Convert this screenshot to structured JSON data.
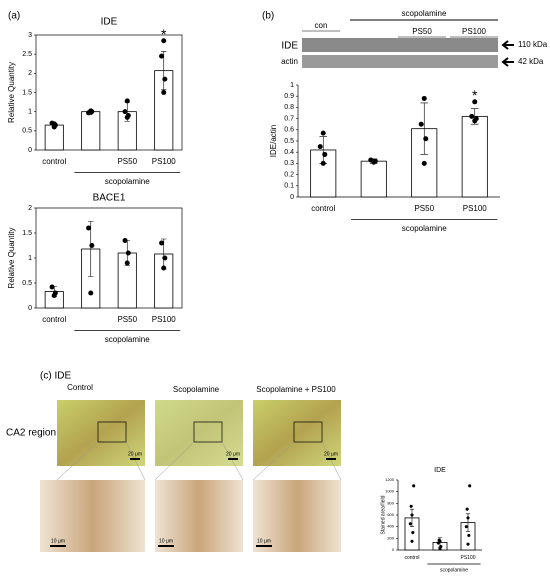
{
  "panels": {
    "a": "(a)",
    "b": "(b)",
    "c": "(c) IDE"
  },
  "blot": {
    "con": "con",
    "group": "scopolamine",
    "ps50": "PS50",
    "ps100": "PS100",
    "ide": "IDE",
    "actin": "actin",
    "ide_kda": "110 kDa",
    "actin_kda": "42 kDa"
  },
  "histology": {
    "control": "Control",
    "scop": "Scopolamine",
    "scop_ps": "Scopolamine + PS100",
    "region": "CA2 region",
    "scale_top": "20 μm",
    "scale_bottom": "10 μm"
  },
  "chart_data": [
    {
      "type": "bar",
      "title": "IDE",
      "y_label": "Relative Quantity",
      "categories": [
        "control",
        null,
        "PS50",
        "PS100"
      ],
      "values": [
        0.65,
        1.0,
        1.0,
        2.07
      ],
      "errors": [
        0.05,
        0.03,
        0.25,
        0.5
      ],
      "points": [
        [
          0.6,
          0.65,
          0.7,
          0.68
        ],
        [
          0.98,
          1.0,
          0.97,
          1.02
        ],
        [
          0.85,
          0.9,
          1.0,
          1.28
        ],
        [
          1.5,
          1.85,
          2.45,
          2.85
        ]
      ],
      "group_label": "scopolamine",
      "annotation": "*",
      "color": "#ffffff",
      "ylim": [
        0,
        3
      ],
      "yticks": [
        0,
        0.5,
        1,
        1.5,
        2,
        2.5,
        3
      ]
    },
    {
      "type": "bar",
      "title": "BACE1",
      "y_label": "Relative Quantity",
      "categories": [
        "control",
        null,
        "PS50",
        "PS100"
      ],
      "values": [
        0.33,
        1.18,
        1.1,
        1.08
      ],
      "errors": [
        0.1,
        0.55,
        0.25,
        0.3
      ],
      "points": [
        [
          0.25,
          0.3,
          0.42
        ],
        [
          0.3,
          1.25,
          1.6
        ],
        [
          0.9,
          1.1,
          1.35
        ],
        [
          0.8,
          1.0,
          1.3
        ]
      ],
      "group_label": "scopolamine",
      "color": "#ffffff",
      "ylim": [
        0,
        2
      ],
      "yticks": [
        0,
        0.5,
        1,
        1.5,
        2
      ]
    },
    {
      "type": "bar",
      "y_label": "IDE/actin",
      "categories": [
        "control",
        null,
        "PS50",
        "PS100"
      ],
      "values": [
        0.42,
        0.32,
        0.61,
        0.72
      ],
      "errors": [
        0.12,
        0.02,
        0.23,
        0.07
      ],
      "points": [
        [
          0.3,
          0.38,
          0.45,
          0.57
        ],
        [
          0.31,
          0.32,
          0.33,
          0.32
        ],
        [
          0.3,
          0.52,
          0.65,
          0.88
        ],
        [
          0.68,
          0.7,
          0.72,
          0.85
        ]
      ],
      "group_label": "scopolamine",
      "annotation": "*",
      "color": "#ffffff",
      "ylim": [
        0,
        1
      ],
      "yticks": [
        0,
        0.1,
        0.2,
        0.3,
        0.4,
        0.5,
        0.6,
        0.7,
        0.8,
        0.9,
        1
      ]
    },
    {
      "type": "bar",
      "title": "IDE",
      "y_label": "Stained area/field",
      "categories": [
        "control",
        null,
        "PS100"
      ],
      "values": [
        550,
        130,
        470
      ],
      "errors": [
        150,
        80,
        150
      ],
      "points": [
        [
          150,
          300,
          450,
          600,
          750,
          1100
        ],
        [
          20,
          60,
          120,
          150,
          170
        ],
        [
          100,
          250,
          400,
          550,
          700,
          1100
        ]
      ],
      "group_label": "scopolamine",
      "color": "#ffffff",
      "ylim": [
        0,
        1200
      ],
      "yticks": [
        0,
        200,
        400,
        600,
        800,
        1000,
        1200
      ]
    }
  ]
}
